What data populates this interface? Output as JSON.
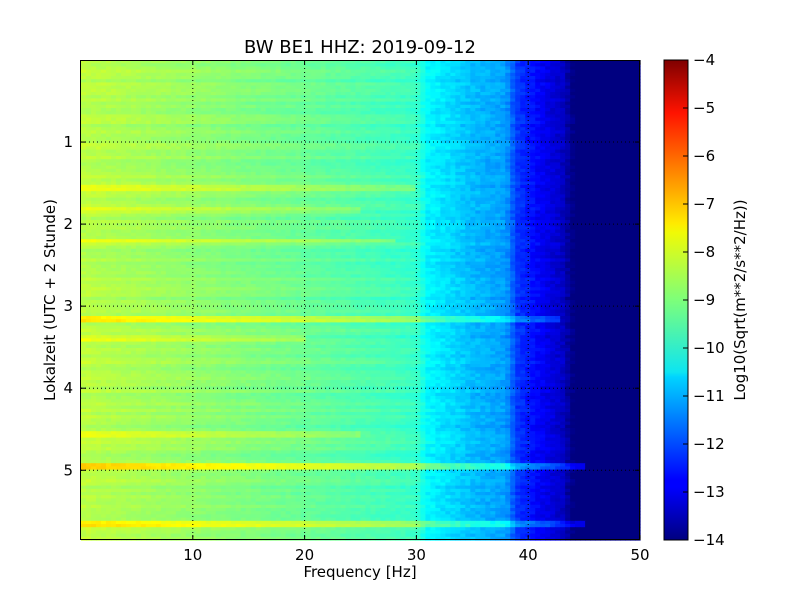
{
  "chart_data": {
    "type": "heatmap",
    "title": "BW BE1 HHZ: 2019-09-12",
    "xlabel": "Frequency [Hz]",
    "ylabel": "Lokalzeit (UTC + 2 Stunde)",
    "colorbar_label": "Log10(Sqrt(m**2/s**2/Hz))",
    "colormap": "jet",
    "xlim": [
      0,
      50
    ],
    "ylim": [
      5.85,
      0
    ],
    "clim": [
      -14,
      -4
    ],
    "y_inverted": true,
    "grid": true,
    "x_ticks": [
      10,
      20,
      30,
      40,
      50
    ],
    "x_tick_labels": [
      "10",
      "20",
      "30",
      "40",
      "50"
    ],
    "y_ticks": [
      1,
      2,
      3,
      4,
      5
    ],
    "y_tick_labels": [
      "1",
      "2",
      "3",
      "4",
      "5"
    ],
    "colorbar_ticks": [
      -4,
      -5,
      -6,
      -7,
      -8,
      -9,
      -10,
      -11,
      -12,
      -13,
      -14
    ],
    "colorbar_tick_labels": [
      "−4",
      "−5",
      "−6",
      "−7",
      "−8",
      "−9",
      "−10",
      "−11",
      "−12",
      "−13",
      "−14"
    ],
    "frequency_profile": {
      "frequency_hz": [
        0,
        2,
        5,
        10,
        15,
        20,
        25,
        30,
        31,
        33,
        35,
        38,
        39,
        41,
        43,
        44,
        50
      ],
      "log10_amplitude": [
        -8.4,
        -8.5,
        -8.6,
        -8.8,
        -9.0,
        -9.2,
        -9.45,
        -9.7,
        -10.3,
        -10.6,
        -10.9,
        -11.2,
        -12.2,
        -12.8,
        -13.3,
        -14.0,
        -14.0
      ]
    },
    "bright_bands": [
      {
        "time_h": 1.56,
        "boost": 0.6,
        "fmax_hz": 30
      },
      {
        "time_h": 1.84,
        "boost": 0.4,
        "fmax_hz": 25
      },
      {
        "time_h": 2.2,
        "boost": 0.6,
        "fmax_hz": 28
      },
      {
        "time_h": 3.15,
        "boost": 0.8,
        "fmax_hz": 43
      },
      {
        "time_h": 3.38,
        "boost": 0.5,
        "fmax_hz": 20
      },
      {
        "time_h": 4.55,
        "boost": 0.4,
        "fmax_hz": 25
      },
      {
        "time_h": 4.95,
        "boost": 1.1,
        "fmax_hz": 45
      },
      {
        "time_h": 5.65,
        "boost": 1.0,
        "fmax_hz": 45
      }
    ]
  }
}
